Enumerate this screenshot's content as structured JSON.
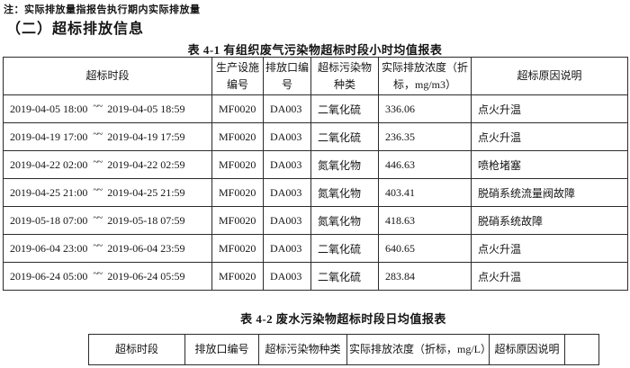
{
  "note": "注：实际排放量指报告执行期内实际排放量",
  "section_heading": "（二）超标排放信息",
  "table1": {
    "title": "表 4-1 有组织废气污染物超标时段小时均值报表",
    "headers": [
      "超标时段",
      "生产设施编号",
      "排放口编号",
      "超标污染物种类",
      "实际排放浓度（折标，mg/m3）",
      "超标原因说明"
    ],
    "period_separator": "~~",
    "rows": [
      {
        "start": "2019-04-05 18:00",
        "end": "2019-04-05 18:59",
        "facility_id": "MF0020",
        "outlet_id": "DA003",
        "pollutant": "二氧化硫",
        "concentration": "336.06",
        "reason": "点火升温"
      },
      {
        "start": "2019-04-19 17:00",
        "end": "2019-04-19 17:59",
        "facility_id": "MF0020",
        "outlet_id": "DA003",
        "pollutant": "二氧化硫",
        "concentration": "236.35",
        "reason": "点火升温"
      },
      {
        "start": "2019-04-22 02:00",
        "end": "2019-04-22 02:59",
        "facility_id": "MF0020",
        "outlet_id": "DA003",
        "pollutant": "氮氧化物",
        "concentration": "446.63",
        "reason": "喷枪堵塞"
      },
      {
        "start": "2019-04-25 21:00",
        "end": "2019-04-25 21:59",
        "facility_id": "MF0020",
        "outlet_id": "DA003",
        "pollutant": "氮氧化物",
        "concentration": "403.41",
        "reason": "脱硝系统流量阀故障"
      },
      {
        "start": "2019-05-18 07:00",
        "end": "2019-05-18 07:59",
        "facility_id": "MF0020",
        "outlet_id": "DA003",
        "pollutant": "氮氧化物",
        "concentration": "418.63",
        "reason": "脱硝系统故障"
      },
      {
        "start": "2019-06-04 23:00",
        "end": "2019-06-04 23:59",
        "facility_id": "MF0020",
        "outlet_id": "DA003",
        "pollutant": "二氧化硫",
        "concentration": "640.65",
        "reason": "点火升温"
      },
      {
        "start": "2019-06-24 05:00",
        "end": "2019-06-24 05:59",
        "facility_id": "MF0020",
        "outlet_id": "DA003",
        "pollutant": "二氧化硫",
        "concentration": "283.84",
        "reason": "点火升温"
      }
    ]
  },
  "table2": {
    "title": "表 4-2 废水污染物超标时段日均值报表",
    "headers": [
      "超标时段",
      "排放口编号",
      "超标污染物种类",
      "实际排放浓度（折标，mg/L）",
      "超标原因说明",
      ""
    ]
  }
}
